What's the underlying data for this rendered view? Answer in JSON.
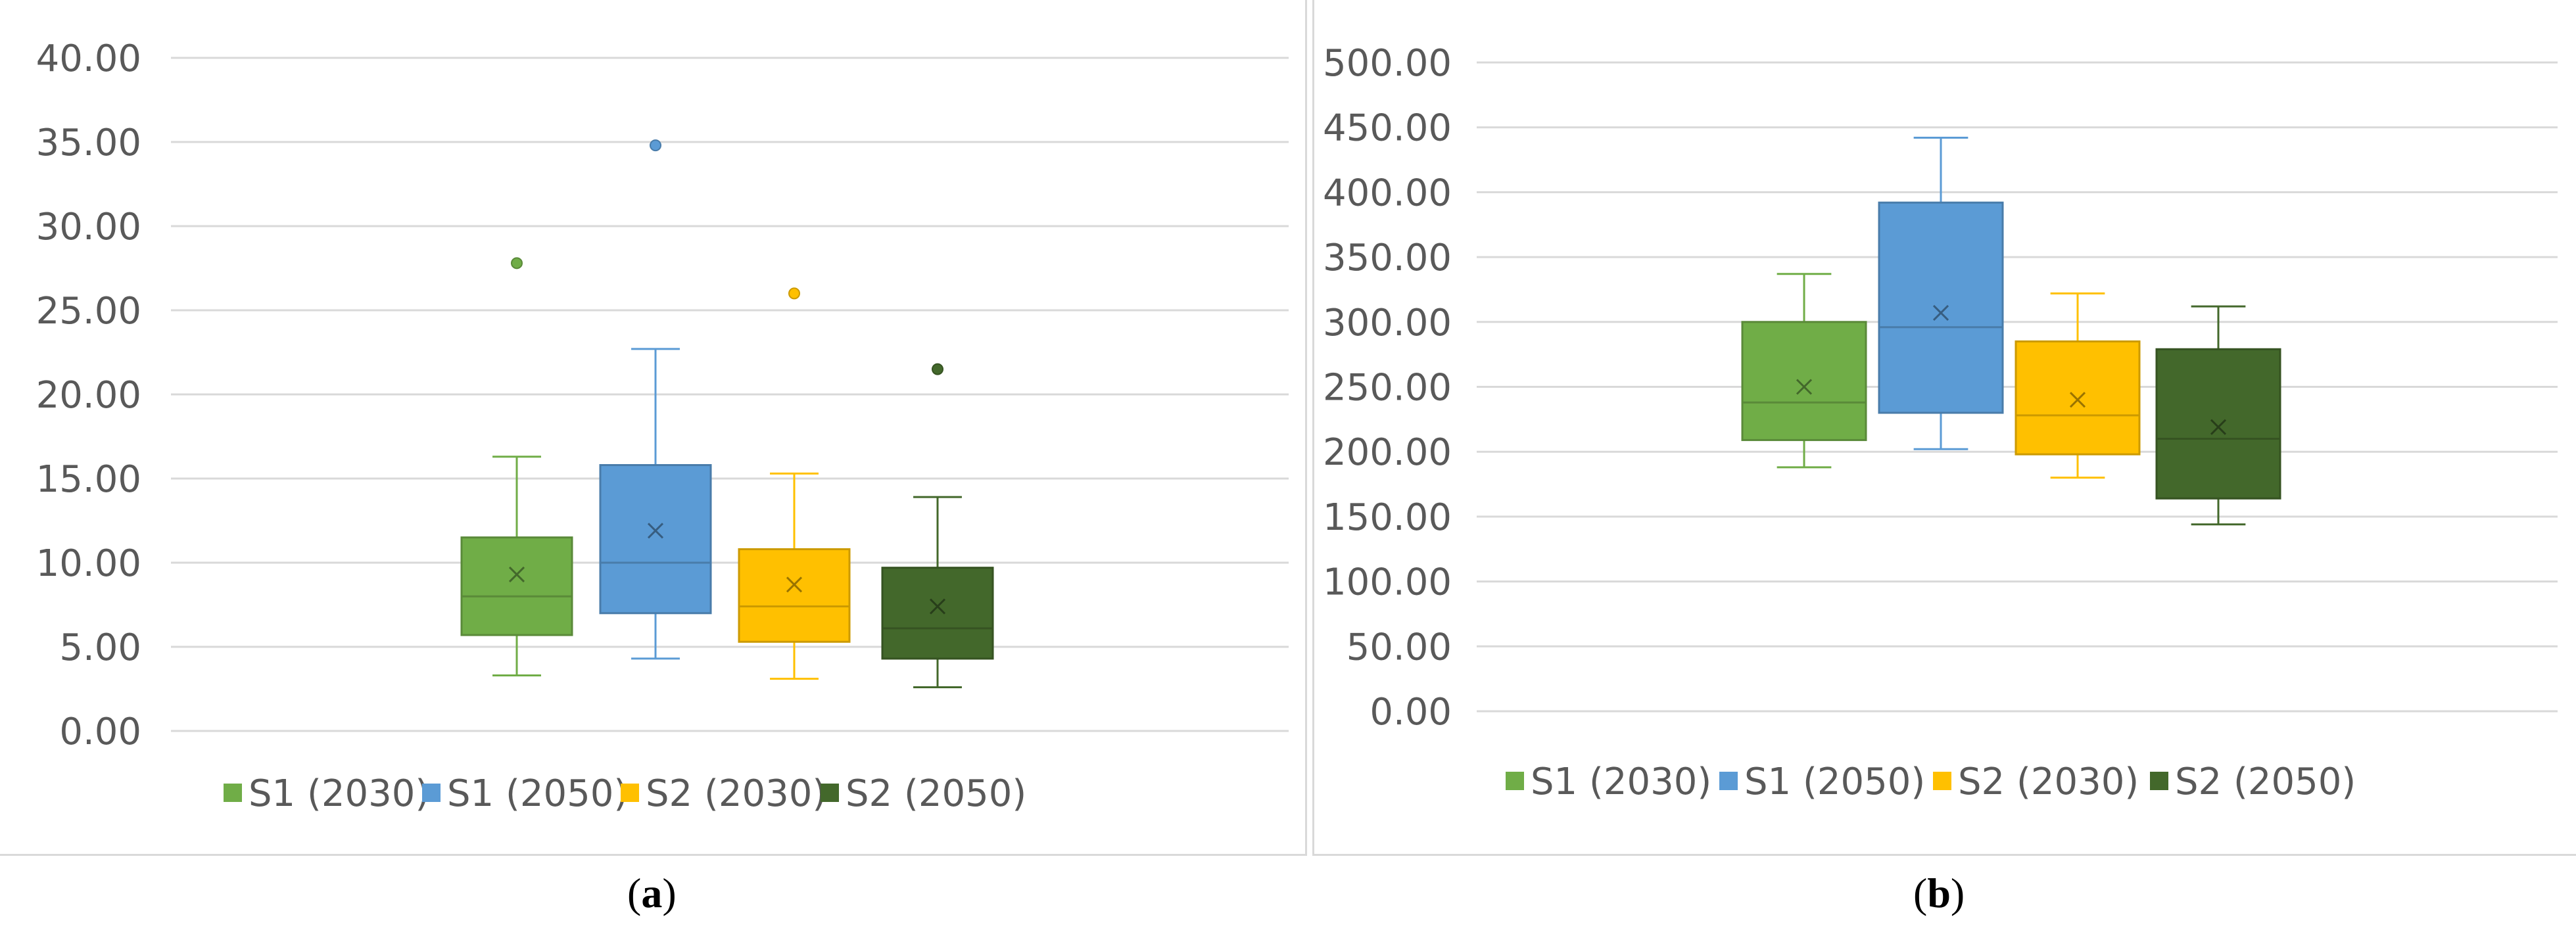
{
  "captions": {
    "a": "a",
    "b": "b"
  },
  "legend_labels": [
    "S1 (2030)",
    "S1 (2050)",
    "S2 (2030)",
    "S2 (2050)"
  ],
  "chart_data": [
    {
      "type": "box",
      "panel": "a",
      "ylim": [
        0,
        40
      ],
      "yticks": [
        "0.00",
        "5.00",
        "10.00",
        "15.00",
        "20.00",
        "25.00",
        "30.00",
        "35.00",
        "40.00"
      ],
      "grid": true,
      "legend_position": "bottom",
      "series": [
        {
          "name": "S1 (2030)",
          "color": "#70ad47",
          "min": 3.3,
          "q1": 5.7,
          "median": 8.0,
          "q3": 11.5,
          "max": 16.3,
          "mean": 9.3,
          "outliers": [
            27.8
          ]
        },
        {
          "name": "S1 (2050)",
          "color": "#5b9bd5",
          "min": 4.3,
          "q1": 7.0,
          "median": 10.0,
          "q3": 15.8,
          "max": 22.7,
          "mean": 11.9,
          "outliers": [
            34.8
          ]
        },
        {
          "name": "S2 (2030)",
          "color": "#ffc000",
          "min": 3.1,
          "q1": 5.3,
          "median": 7.4,
          "q3": 10.8,
          "max": 15.3,
          "mean": 8.7,
          "outliers": [
            26.0
          ]
        },
        {
          "name": "S2 (2050)",
          "color": "#43682b",
          "min": 2.6,
          "q1": 4.3,
          "median": 6.1,
          "q3": 9.7,
          "max": 13.9,
          "mean": 7.4,
          "outliers": [
            21.5
          ]
        }
      ]
    },
    {
      "type": "box",
      "panel": "b",
      "ylim": [
        0,
        500
      ],
      "yticks": [
        "0.00",
        "50.00",
        "100.00",
        "150.00",
        "200.00",
        "250.00",
        "300.00",
        "350.00",
        "400.00",
        "450.00",
        "500.00"
      ],
      "grid": true,
      "legend_position": "bottom",
      "series": [
        {
          "name": "S1 (2030)",
          "color": "#70ad47",
          "min": 188,
          "q1": 209,
          "median": 238,
          "q3": 300,
          "max": 337,
          "mean": 250,
          "outliers": []
        },
        {
          "name": "S1 (2050)",
          "color": "#5b9bd5",
          "min": 202,
          "q1": 230,
          "median": 296,
          "q3": 392,
          "max": 442,
          "mean": 307,
          "outliers": []
        },
        {
          "name": "S2 (2030)",
          "color": "#ffc000",
          "min": 180,
          "q1": 198,
          "median": 228,
          "q3": 285,
          "max": 322,
          "mean": 240,
          "outliers": []
        },
        {
          "name": "S2 (2050)",
          "color": "#43682b",
          "min": 144,
          "q1": 164,
          "median": 210,
          "q3": 279,
          "max": 312,
          "mean": 219,
          "outliers": []
        }
      ]
    }
  ]
}
